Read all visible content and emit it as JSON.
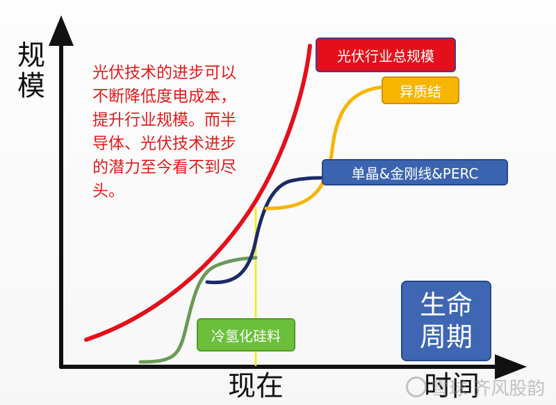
{
  "axes": {
    "y_label": "规模",
    "x_label_now": "现在",
    "x_label_time": "时间"
  },
  "note": "光伏技术的进步可以不断降低度电成本，提升行业规模。而半导体、光伏技术进步的潜力至今看不到尽头。",
  "labels": {
    "total_scale": "光伏行业总规模",
    "heterojunction": "异质结",
    "mono_perc": "单晶&金刚线&PERC",
    "silicon": "冷氢化硅料",
    "lifecycle_line1": "生命",
    "lifecycle_line2": "周期"
  },
  "watermark": "雪球 齐风股韵",
  "colors": {
    "total_curve": "#e3101c",
    "hetero_curve": "#f7b500",
    "mono_curve": "#1c2a66",
    "silicon_curve": "#6a9a5a",
    "now_line": "#f2ef00",
    "axis": "#111111",
    "note_text": "#e01b1b"
  }
}
